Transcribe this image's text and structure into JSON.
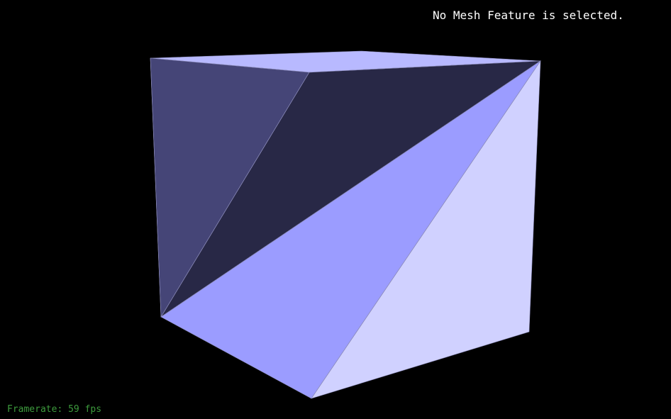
{
  "viewer": {
    "selection_status": "No Mesh Feature is selected.",
    "framerate": "Framerate: 59 fps",
    "background_color": "#000000",
    "status_color": "#ffffff",
    "framerate_color": "#3d9b3d"
  },
  "mesh": {
    "face_colors": {
      "top": "#b8b9ff",
      "left_side": "#454577",
      "back_upper": "#282846",
      "front_middle": "#9b9cff",
      "front_right": "#d0d1ff",
      "edge": "#8a8ab8"
    }
  }
}
